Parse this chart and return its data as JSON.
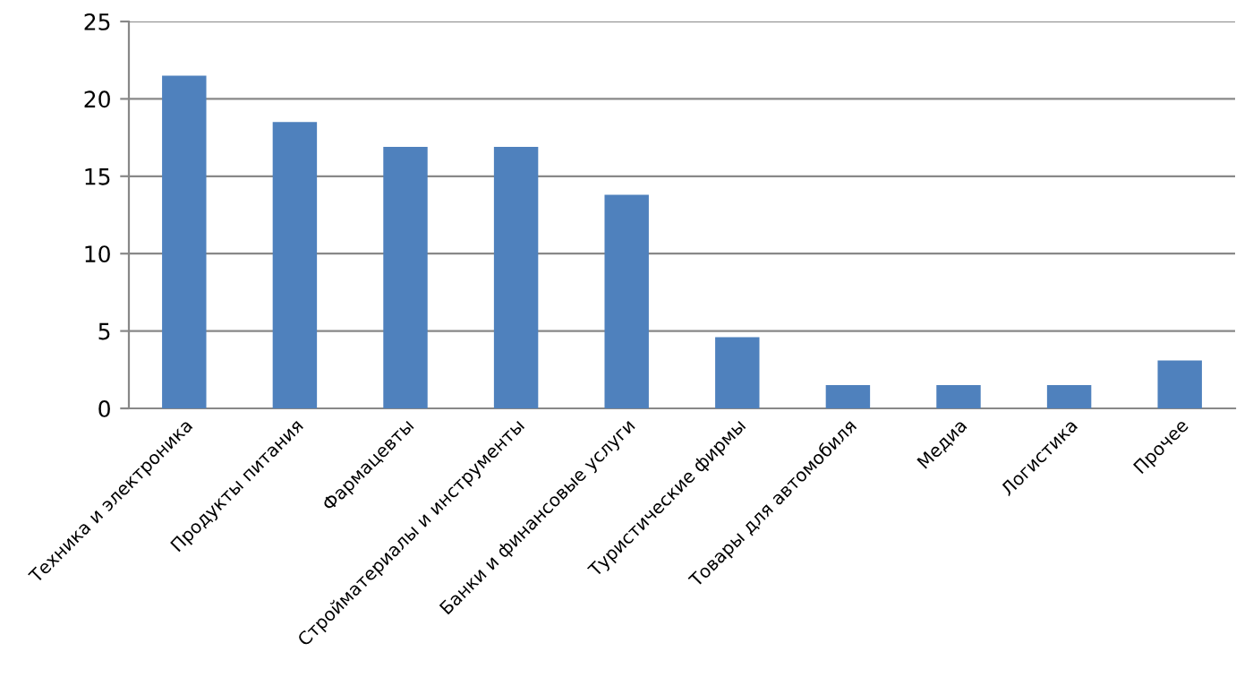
{
  "chart_data": {
    "type": "bar",
    "categories": [
      "Техника и электроника",
      "Продукты питания",
      "Фармацевты",
      "Стройматериалы и инструменты",
      "Банки и финансовые услуги",
      "Туристические фирмы",
      "Товары для автомобиля",
      "Медиа",
      "Логистика",
      "Прочее"
    ],
    "values": [
      21.5,
      18.5,
      16.9,
      16.9,
      13.8,
      4.6,
      1.5,
      1.5,
      1.5,
      3.1
    ],
    "color": "#4f81bd",
    "ylim": [
      0,
      25
    ],
    "yticks": [
      0,
      5,
      10,
      15,
      20,
      25
    ],
    "grid": "y",
    "legend": false
  }
}
